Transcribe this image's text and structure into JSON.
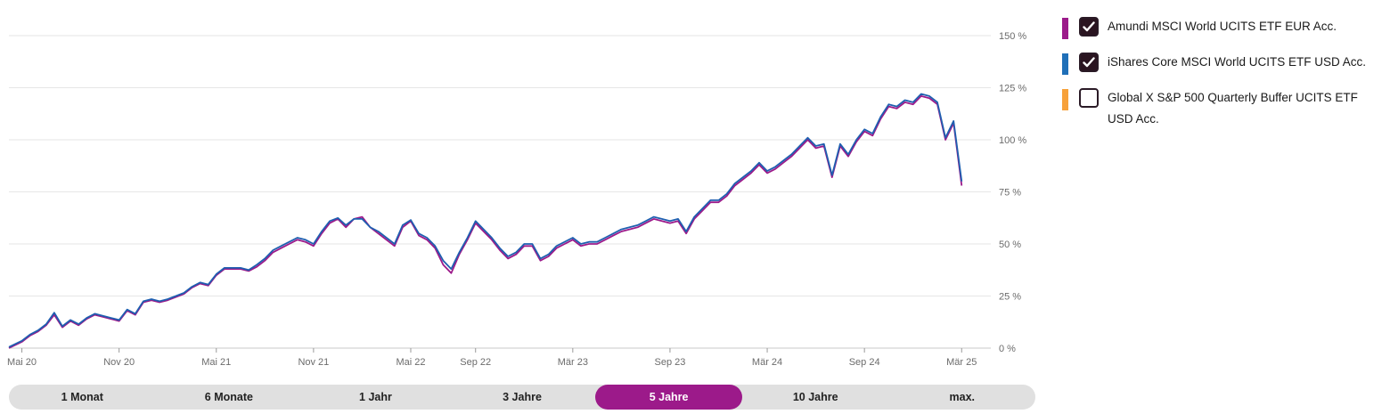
{
  "chart_data": {
    "type": "line",
    "ylim": [
      0,
      150
    ],
    "yticks": [
      "0 %",
      "25 %",
      "50 %",
      "75 %",
      "100 %",
      "125 %",
      "150 %"
    ],
    "ytick_values": [
      0,
      25,
      50,
      75,
      100,
      125,
      150
    ],
    "xticks": [
      "Mai 20",
      "Nov 20",
      "Mai 21",
      "Nov 21",
      "Mai 22",
      "Sep 22",
      "Mär 23",
      "Sep 23",
      "Mär 24",
      "Sep 24",
      "Mär 25"
    ],
    "xtick_values": [
      0,
      6,
      12,
      18,
      24,
      28,
      34,
      40,
      46,
      52,
      58
    ],
    "xlim": [
      -0.8,
      59.8
    ],
    "grid": true,
    "series": [
      {
        "name": "Amundi MSCI World UCITS ETF EUR Acc.",
        "color": "#9c1a8a",
        "points": [
          [
            -0.8,
            0
          ],
          [
            0,
            3
          ],
          [
            0.5,
            6
          ],
          [
            1,
            8
          ],
          [
            1.5,
            11
          ],
          [
            2,
            16
          ],
          [
            2.5,
            10
          ],
          [
            3,
            13
          ],
          [
            3.5,
            11
          ],
          [
            4,
            14
          ],
          [
            4.5,
            16
          ],
          [
            5,
            15
          ],
          [
            5.5,
            14
          ],
          [
            6,
            13
          ],
          [
            6.5,
            18
          ],
          [
            7,
            16
          ],
          [
            7.5,
            22
          ],
          [
            8,
            23
          ],
          [
            8.5,
            22
          ],
          [
            9,
            23
          ],
          [
            10,
            26
          ],
          [
            10.5,
            29
          ],
          [
            11,
            31
          ],
          [
            11.5,
            30
          ],
          [
            12,
            35
          ],
          [
            12.5,
            38
          ],
          [
            13,
            38
          ],
          [
            13.5,
            38
          ],
          [
            14,
            37
          ],
          [
            14.5,
            39
          ],
          [
            15,
            42
          ],
          [
            15.5,
            46
          ],
          [
            16,
            48
          ],
          [
            16.5,
            50
          ],
          [
            17,
            52
          ],
          [
            17.5,
            51
          ],
          [
            18,
            49
          ],
          [
            18.5,
            55
          ],
          [
            19,
            60
          ],
          [
            19.5,
            62
          ],
          [
            20,
            58
          ],
          [
            20.5,
            62
          ],
          [
            21,
            63
          ],
          [
            21.5,
            58
          ],
          [
            22,
            55
          ],
          [
            22.5,
            52
          ],
          [
            23,
            49
          ],
          [
            23.5,
            58
          ],
          [
            24,
            61
          ],
          [
            24.5,
            54
          ],
          [
            25,
            52
          ],
          [
            25.5,
            48
          ],
          [
            26,
            40
          ],
          [
            26.5,
            36
          ],
          [
            27,
            45
          ],
          [
            27.5,
            52
          ],
          [
            28,
            60
          ],
          [
            28.5,
            56
          ],
          [
            29,
            52
          ],
          [
            29.5,
            47
          ],
          [
            30,
            43
          ],
          [
            30.5,
            45
          ],
          [
            31,
            49
          ],
          [
            31.5,
            49
          ],
          [
            32,
            42
          ],
          [
            32.5,
            44
          ],
          [
            33,
            48
          ],
          [
            33.5,
            50
          ],
          [
            34,
            52
          ],
          [
            34.5,
            49
          ],
          [
            35,
            50
          ],
          [
            35.5,
            50
          ],
          [
            36,
            52
          ],
          [
            36.5,
            54
          ],
          [
            37,
            56
          ],
          [
            37.5,
            57
          ],
          [
            38,
            58
          ],
          [
            38.5,
            60
          ],
          [
            39,
            62
          ],
          [
            39.5,
            61
          ],
          [
            40,
            60
          ],
          [
            40.5,
            61
          ],
          [
            41,
            55
          ],
          [
            41.5,
            62
          ],
          [
            42,
            66
          ],
          [
            42.5,
            70
          ],
          [
            43,
            70
          ],
          [
            43.5,
            73
          ],
          [
            44,
            78
          ],
          [
            44.5,
            81
          ],
          [
            45,
            84
          ],
          [
            45.5,
            88
          ],
          [
            46,
            84
          ],
          [
            46.5,
            86
          ],
          [
            47,
            89
          ],
          [
            47.5,
            92
          ],
          [
            48,
            96
          ],
          [
            48.5,
            100
          ],
          [
            49,
            96
          ],
          [
            49.5,
            97
          ],
          [
            50,
            82
          ],
          [
            50.5,
            97
          ],
          [
            51,
            92
          ],
          [
            51.5,
            99
          ],
          [
            52,
            104
          ],
          [
            52.5,
            102
          ],
          [
            53,
            110
          ],
          [
            53.5,
            116
          ],
          [
            54,
            115
          ],
          [
            54.5,
            118
          ],
          [
            55,
            117
          ],
          [
            55.5,
            121
          ],
          [
            56,
            120
          ],
          [
            56.5,
            117
          ],
          [
            57,
            100
          ],
          [
            57.5,
            108
          ],
          [
            58,
            78
          ]
        ]
      },
      {
        "name": "iShares Core MSCI World UCITS ETF USD Acc.",
        "color": "#1f5fb0",
        "points": [
          [
            -0.8,
            0.5
          ],
          [
            0,
            3.5
          ],
          [
            0.5,
            6.5
          ],
          [
            1,
            8.5
          ],
          [
            1.5,
            11.5
          ],
          [
            2,
            17
          ],
          [
            2.5,
            10.5
          ],
          [
            3,
            13.5
          ],
          [
            3.5,
            11.5
          ],
          [
            4,
            14.5
          ],
          [
            4.5,
            16.5
          ],
          [
            5,
            15.5
          ],
          [
            5.5,
            14.5
          ],
          [
            6,
            13.5
          ],
          [
            6.5,
            18.5
          ],
          [
            7,
            16.5
          ],
          [
            7.5,
            22.5
          ],
          [
            8,
            23.5
          ],
          [
            8.5,
            22.5
          ],
          [
            9,
            23.5
          ],
          [
            10,
            26.5
          ],
          [
            10.5,
            29.5
          ],
          [
            11,
            31.5
          ],
          [
            11.5,
            30.5
          ],
          [
            12,
            35.5
          ],
          [
            12.5,
            38.5
          ],
          [
            13,
            38.5
          ],
          [
            13.5,
            38.5
          ],
          [
            14,
            37.5
          ],
          [
            14.5,
            40
          ],
          [
            15,
            43
          ],
          [
            15.5,
            47
          ],
          [
            16,
            49
          ],
          [
            16.5,
            51
          ],
          [
            17,
            53
          ],
          [
            17.5,
            52
          ],
          [
            18,
            50
          ],
          [
            18.5,
            56
          ],
          [
            19,
            61
          ],
          [
            19.5,
            62.5
          ],
          [
            20,
            59
          ],
          [
            20.5,
            62
          ],
          [
            21,
            62
          ],
          [
            21.5,
            58
          ],
          [
            22,
            56
          ],
          [
            22.5,
            53
          ],
          [
            23,
            50
          ],
          [
            23.5,
            59
          ],
          [
            24,
            61.5
          ],
          [
            24.5,
            55
          ],
          [
            25,
            53
          ],
          [
            25.5,
            49
          ],
          [
            26,
            42
          ],
          [
            26.5,
            38
          ],
          [
            27,
            46
          ],
          [
            27.5,
            53
          ],
          [
            28,
            61
          ],
          [
            28.5,
            57
          ],
          [
            29,
            53
          ],
          [
            29.5,
            48
          ],
          [
            30,
            44
          ],
          [
            30.5,
            46
          ],
          [
            31,
            50
          ],
          [
            31.5,
            50
          ],
          [
            32,
            43
          ],
          [
            32.5,
            45
          ],
          [
            33,
            49
          ],
          [
            33.5,
            51
          ],
          [
            34,
            53
          ],
          [
            34.5,
            50
          ],
          [
            35,
            51
          ],
          [
            35.5,
            51
          ],
          [
            36,
            53
          ],
          [
            36.5,
            55
          ],
          [
            37,
            57
          ],
          [
            37.5,
            58
          ],
          [
            38,
            59
          ],
          [
            38.5,
            61
          ],
          [
            39,
            63
          ],
          [
            39.5,
            62
          ],
          [
            40,
            61
          ],
          [
            40.5,
            62
          ],
          [
            41,
            56
          ],
          [
            41.5,
            63
          ],
          [
            42,
            67
          ],
          [
            42.5,
            71
          ],
          [
            43,
            71
          ],
          [
            43.5,
            74
          ],
          [
            44,
            79
          ],
          [
            44.5,
            82
          ],
          [
            45,
            85
          ],
          [
            45.5,
            89
          ],
          [
            46,
            85
          ],
          [
            46.5,
            87
          ],
          [
            47,
            90
          ],
          [
            47.5,
            93
          ],
          [
            48,
            97
          ],
          [
            48.5,
            101
          ],
          [
            49,
            97
          ],
          [
            49.5,
            98
          ],
          [
            50,
            83
          ],
          [
            50.5,
            98
          ],
          [
            51,
            93
          ],
          [
            51.5,
            100
          ],
          [
            52,
            105
          ],
          [
            52.5,
            103
          ],
          [
            53,
            111
          ],
          [
            53.5,
            117
          ],
          [
            54,
            116
          ],
          [
            54.5,
            119
          ],
          [
            55,
            118
          ],
          [
            55.5,
            122
          ],
          [
            56,
            121
          ],
          [
            56.5,
            118
          ],
          [
            57,
            101
          ],
          [
            57.5,
            109
          ],
          [
            58,
            80
          ]
        ]
      }
    ]
  },
  "legend": [
    {
      "label": "Amundi MSCI World UCITS ETF EUR Acc.",
      "color": "#9c1a8a",
      "checked": true
    },
    {
      "label": "iShares Core MSCI World UCITS ETF USD Acc.",
      "color": "#1f6fb8",
      "checked": true
    },
    {
      "label": "Global X S&P 500 Quarterly Buffer UCITS ETF USD Acc.",
      "color": "#f7a13a",
      "checked": false
    }
  ],
  "ranges": {
    "items": [
      "1 Monat",
      "6 Monate",
      "1 Jahr",
      "3 Jahre",
      "5 Jahre",
      "10 Jahre",
      "max."
    ],
    "active": "5 Jahre",
    "active_color": "#9c1a8a"
  }
}
